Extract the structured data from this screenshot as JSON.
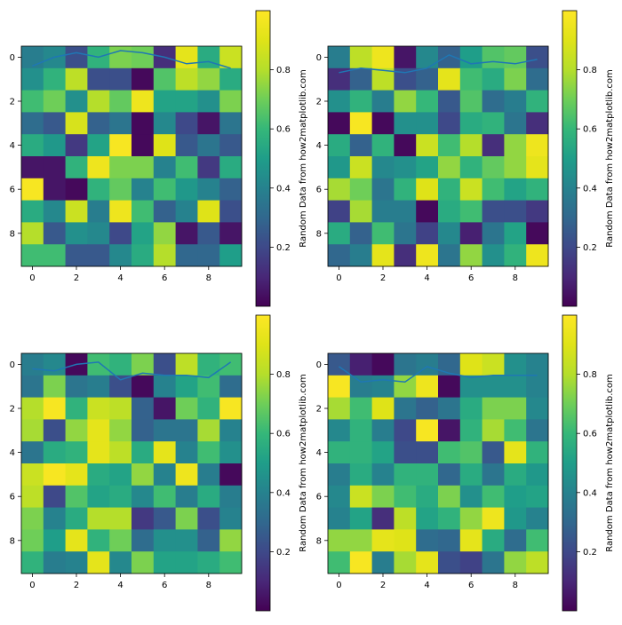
{
  "chart_data": [
    {
      "type": "heatmap",
      "xticks": [
        "0",
        "2",
        "4",
        "6",
        "8"
      ],
      "yticks": [
        "0",
        "2",
        "4",
        "6",
        "8"
      ],
      "colorbar": {
        "label": "Random Data from how2matplotlib.com",
        "ticks": [
          "0.2",
          "0.4",
          "0.6",
          "0.8"
        ],
        "range": [
          0.0,
          1.0
        ],
        "colormap": "viridis"
      },
      "line": {
        "x": [
          0,
          1,
          2,
          3,
          4,
          5,
          6,
          7,
          8,
          9
        ],
        "y": [
          0.4,
          0.0,
          -0.2,
          0.0,
          -0.3,
          -0.2,
          0.0,
          0.3,
          0.2,
          0.5
        ],
        "color": "#1f77b4"
      },
      "values": [
        [
          0.38,
          0.42,
          0.22,
          0.58,
          0.72,
          0.7,
          0.12,
          0.92,
          0.55,
          0.85
        ],
        [
          0.45,
          0.58,
          0.82,
          0.22,
          0.22,
          0.02,
          0.65,
          0.82,
          0.75,
          0.55
        ],
        [
          0.62,
          0.7,
          0.45,
          0.8,
          0.68,
          0.95,
          0.52,
          0.52,
          0.45,
          0.72
        ],
        [
          0.32,
          0.25,
          0.88,
          0.28,
          0.35,
          0.02,
          0.42,
          0.2,
          0.05,
          0.35
        ],
        [
          0.55,
          0.48,
          0.15,
          0.52,
          0.98,
          0.02,
          0.9,
          0.25,
          0.35,
          0.25
        ],
        [
          0.05,
          0.05,
          0.58,
          0.95,
          0.72,
          0.72,
          0.4,
          0.62,
          0.15,
          0.55
        ],
        [
          0.98,
          0.05,
          0.02,
          0.58,
          0.68,
          0.4,
          0.62,
          0.48,
          0.4,
          0.28
        ],
        [
          0.55,
          0.42,
          0.85,
          0.38,
          0.95,
          0.62,
          0.28,
          0.4,
          0.9,
          0.22
        ],
        [
          0.8,
          0.25,
          0.45,
          0.42,
          0.2,
          0.52,
          0.75,
          0.05,
          0.25,
          0.05
        ],
        [
          0.62,
          0.62,
          0.25,
          0.25,
          0.42,
          0.55,
          0.8,
          0.3,
          0.3,
          0.5
        ]
      ]
    },
    {
      "type": "heatmap",
      "xticks": [
        "0",
        "2",
        "4",
        "6",
        "8"
      ],
      "yticks": [
        "0",
        "2",
        "4",
        "6",
        "8"
      ],
      "colorbar": {
        "label": "Random Data from how2matplotlib.com",
        "ticks": [
          "0.2",
          "0.4",
          "0.6",
          "0.8"
        ],
        "range": [
          0.0,
          1.0
        ],
        "colormap": "viridis"
      },
      "line": {
        "x": [
          0,
          1,
          2,
          3,
          4,
          5,
          6,
          7,
          8,
          9
        ],
        "y": [
          0.7,
          0.5,
          0.6,
          0.7,
          0.5,
          -0.1,
          0.3,
          0.2,
          0.3,
          0.1
        ],
        "color": "#1f77b4"
      },
      "values": [
        [
          0.38,
          0.82,
          0.95,
          0.05,
          0.42,
          0.28,
          0.5,
          0.65,
          0.68,
          0.22
        ],
        [
          0.12,
          0.28,
          0.82,
          0.22,
          0.28,
          0.92,
          0.62,
          0.55,
          0.72,
          0.32
        ],
        [
          0.45,
          0.58,
          0.38,
          0.75,
          0.6,
          0.25,
          0.65,
          0.32,
          0.38,
          0.58
        ],
        [
          0.02,
          0.98,
          0.02,
          0.45,
          0.45,
          0.2,
          0.55,
          0.58,
          0.35,
          0.12
        ],
        [
          0.55,
          0.28,
          0.58,
          0.02,
          0.85,
          0.62,
          0.8,
          0.12,
          0.75,
          0.95
        ],
        [
          0.48,
          0.85,
          0.42,
          0.45,
          0.52,
          0.75,
          0.58,
          0.68,
          0.75,
          0.92
        ],
        [
          0.78,
          0.7,
          0.35,
          0.58,
          0.9,
          0.58,
          0.85,
          0.62,
          0.52,
          0.58
        ],
        [
          0.18,
          0.78,
          0.38,
          0.38,
          0.02,
          0.55,
          0.62,
          0.22,
          0.22,
          0.15
        ],
        [
          0.55,
          0.28,
          0.62,
          0.35,
          0.18,
          0.42,
          0.08,
          0.35,
          0.52,
          0.02
        ],
        [
          0.3,
          0.38,
          0.92,
          0.12,
          0.95,
          0.35,
          0.75,
          0.45,
          0.58,
          0.95
        ]
      ]
    },
    {
      "type": "heatmap",
      "xticks": [
        "0",
        "2",
        "4",
        "6",
        "8"
      ],
      "yticks": [
        "0",
        "2",
        "4",
        "6",
        "8"
      ],
      "colorbar": {
        "label": "Random Data from how2matplotlib.com",
        "ticks": [
          "0.2",
          "0.4",
          "0.6",
          "0.8"
        ],
        "range": [
          0.0,
          1.0
        ],
        "colormap": "viridis"
      },
      "line": {
        "x": [
          0,
          1,
          2,
          3,
          4,
          5,
          6,
          7,
          8,
          9
        ],
        "y": [
          0.2,
          0.3,
          0.0,
          -0.1,
          0.7,
          0.4,
          0.5,
          0.5,
          0.6,
          -0.1
        ],
        "color": "#1f77b4"
      },
      "values": [
        [
          0.38,
          0.42,
          0.02,
          0.62,
          0.58,
          0.72,
          0.22,
          0.82,
          0.58,
          0.62
        ],
        [
          0.35,
          0.72,
          0.35,
          0.38,
          0.22,
          0.02,
          0.4,
          0.52,
          0.62,
          0.32
        ],
        [
          0.8,
          0.98,
          0.58,
          0.85,
          0.82,
          0.28,
          0.05,
          0.7,
          0.58,
          0.98
        ],
        [
          0.78,
          0.22,
          0.75,
          0.92,
          0.75,
          0.28,
          0.35,
          0.35,
          0.78,
          0.4
        ],
        [
          0.35,
          0.55,
          0.58,
          0.92,
          0.82,
          0.55,
          0.92,
          0.4,
          0.62,
          0.45
        ],
        [
          0.85,
          0.98,
          0.92,
          0.55,
          0.52,
          0.75,
          0.4,
          0.95,
          0.38,
          0.02
        ],
        [
          0.82,
          0.2,
          0.65,
          0.52,
          0.55,
          0.42,
          0.62,
          0.38,
          0.55,
          0.38
        ],
        [
          0.72,
          0.4,
          0.55,
          0.8,
          0.8,
          0.15,
          0.25,
          0.72,
          0.22,
          0.4
        ],
        [
          0.7,
          0.5,
          0.92,
          0.58,
          0.7,
          0.32,
          0.45,
          0.45,
          0.28,
          0.75
        ],
        [
          0.58,
          0.38,
          0.4,
          0.92,
          0.42,
          0.72,
          0.52,
          0.52,
          0.55,
          0.62
        ]
      ]
    },
    {
      "type": "heatmap",
      "xticks": [
        "0",
        "2",
        "4",
        "6",
        "8"
      ],
      "yticks": [
        "0",
        "2",
        "4",
        "6",
        "8"
      ],
      "colorbar": {
        "label": "Random Data from how2matplotlib.com",
        "ticks": [
          "0.2",
          "0.4",
          "0.6",
          "0.8"
        ],
        "range": [
          0.0,
          1.0
        ],
        "colormap": "viridis"
      },
      "line": {
        "x": [
          0,
          1,
          2,
          3,
          4,
          5,
          6,
          7,
          8,
          9
        ],
        "y": [
          0.1,
          0.8,
          0.7,
          0.8,
          0.1,
          0.4,
          0.6,
          0.5,
          0.5,
          0.5
        ],
        "color": "#1f77b4"
      },
      "values": [
        [
          0.25,
          0.08,
          0.02,
          0.35,
          0.38,
          0.3,
          0.9,
          0.85,
          0.45,
          0.4
        ],
        [
          0.98,
          0.38,
          0.4,
          0.75,
          0.95,
          0.02,
          0.45,
          0.45,
          0.45,
          0.4
        ],
        [
          0.78,
          0.62,
          0.9,
          0.35,
          0.28,
          0.35,
          0.55,
          0.72,
          0.72,
          0.42
        ],
        [
          0.42,
          0.58,
          0.38,
          0.2,
          0.98,
          0.05,
          0.58,
          0.78,
          0.62,
          0.35
        ],
        [
          0.58,
          0.58,
          0.52,
          0.22,
          0.22,
          0.62,
          0.65,
          0.25,
          0.92,
          0.58
        ],
        [
          0.38,
          0.55,
          0.4,
          0.58,
          0.58,
          0.3,
          0.55,
          0.35,
          0.55,
          0.48
        ],
        [
          0.42,
          0.85,
          0.72,
          0.62,
          0.55,
          0.72,
          0.45,
          0.62,
          0.5,
          0.52
        ],
        [
          0.4,
          0.52,
          0.12,
          0.82,
          0.52,
          0.58,
          0.75,
          0.95,
          0.48,
          0.4
        ],
        [
          0.75,
          0.75,
          0.92,
          0.9,
          0.32,
          0.3,
          0.92,
          0.55,
          0.32,
          0.62
        ],
        [
          0.62,
          0.98,
          0.38,
          0.78,
          0.92,
          0.22,
          0.18,
          0.35,
          0.75,
          0.82
        ]
      ]
    }
  ]
}
